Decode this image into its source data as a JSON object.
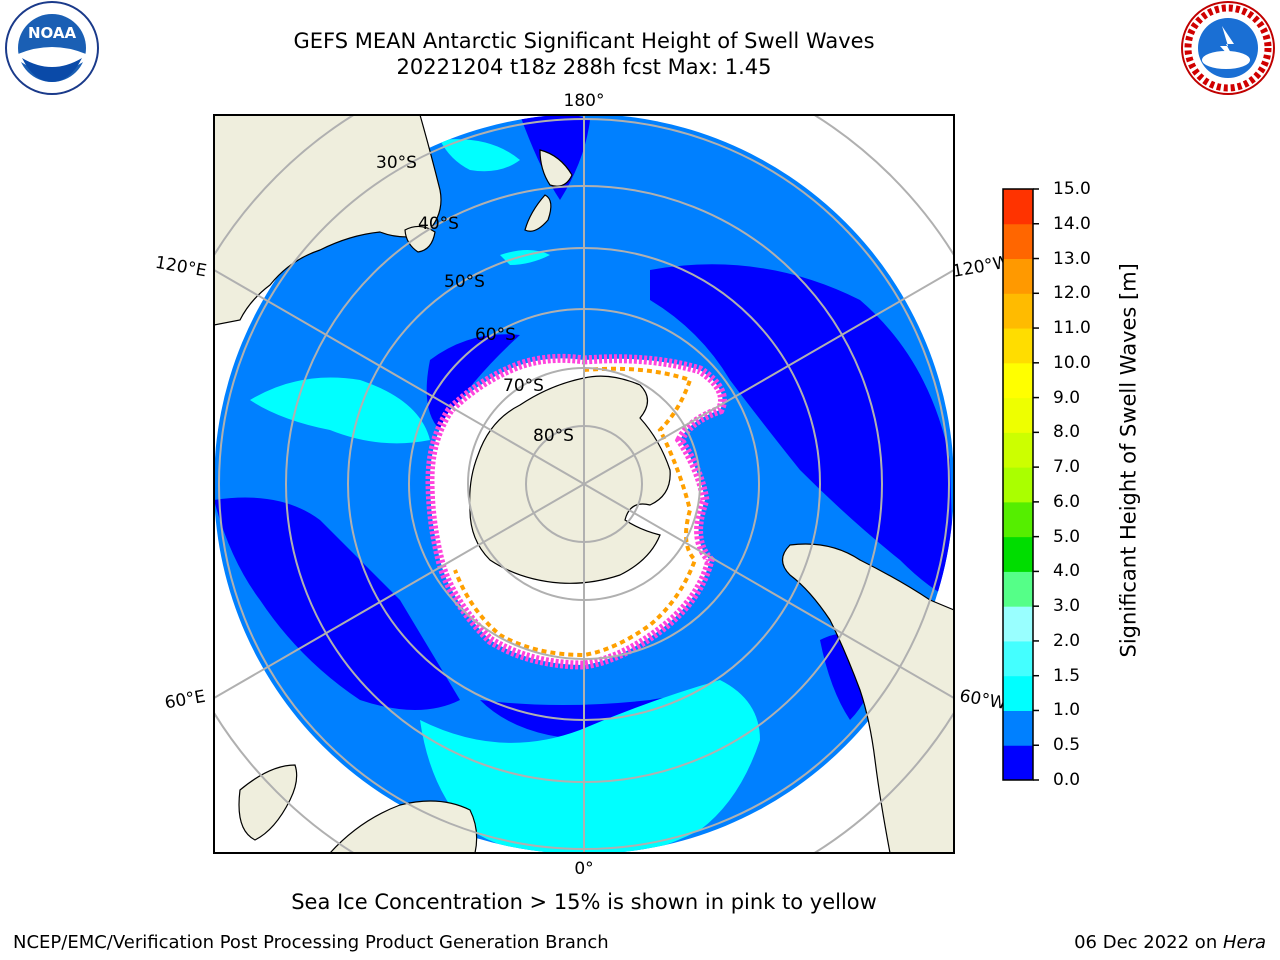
{
  "header": {
    "title_line1": "GEFS MEAN Antarctic Significant Height of Swell Waves",
    "title_line2": "20221204 t18z 288h fcst   Max: 1.45"
  },
  "logos": {
    "noaa": {
      "text": "NOAA",
      "ring_text": "NATIONAL OCEANIC AND ATMOSPHERIC ADMINISTRATION · U.S. DEPARTMENT OF COMMERCE"
    },
    "nws": {
      "ring_text": "NATIONAL WEATHER SERVICE"
    }
  },
  "map": {
    "projection": "south-polar-stereographic",
    "longitude_labels": {
      "top": "180°",
      "bottom": "0°",
      "left_upper": "120°E",
      "left_lower": "60°E",
      "right_upper": "120°W",
      "right_lower": "60°W"
    },
    "latitude_labels": [
      "30°S",
      "40°S",
      "50°S",
      "60°S",
      "70°S",
      "80°S"
    ],
    "colors": {
      "land": "#efeedd",
      "ocean_low": "#0000ff",
      "ocean_mid": "#0080ff",
      "ocean_swell": "#00ffff",
      "ocean_light": "#66ffff",
      "ice_pink": "#ff44dd",
      "ice_orange": "#ffa000",
      "grid": "#b0b0b0"
    }
  },
  "colorbar": {
    "title": "Significant Height of Swell Waves [m]",
    "ticks": [
      "15.0",
      "14.0",
      "13.0",
      "12.0",
      "11.0",
      "10.0",
      "9.0",
      "8.0",
      "7.0",
      "6.0",
      "5.0",
      "4.0",
      "3.0",
      "2.0",
      "1.5",
      "1.0",
      "0.5",
      "0.0"
    ],
    "colors": [
      "#0000ff",
      "#0080ff",
      "#00ffff",
      "#44ffff",
      "#99ffff",
      "#55ff88",
      "#00dd00",
      "#55ee00",
      "#aaff00",
      "#ccff00",
      "#eeff00",
      "#ffff00",
      "#ffdd00",
      "#ffbb00",
      "#ff9900",
      "#ff6600",
      "#ff3300",
      "#ff0000"
    ]
  },
  "footer": {
    "note": "Sea Ice Concentration > 15% is shown in pink to yellow",
    "left": "NCEP/EMC/Verification Post Processing Product Generation Branch",
    "right_date": "06 Dec 2022 on ",
    "right_machine": "Hera"
  }
}
